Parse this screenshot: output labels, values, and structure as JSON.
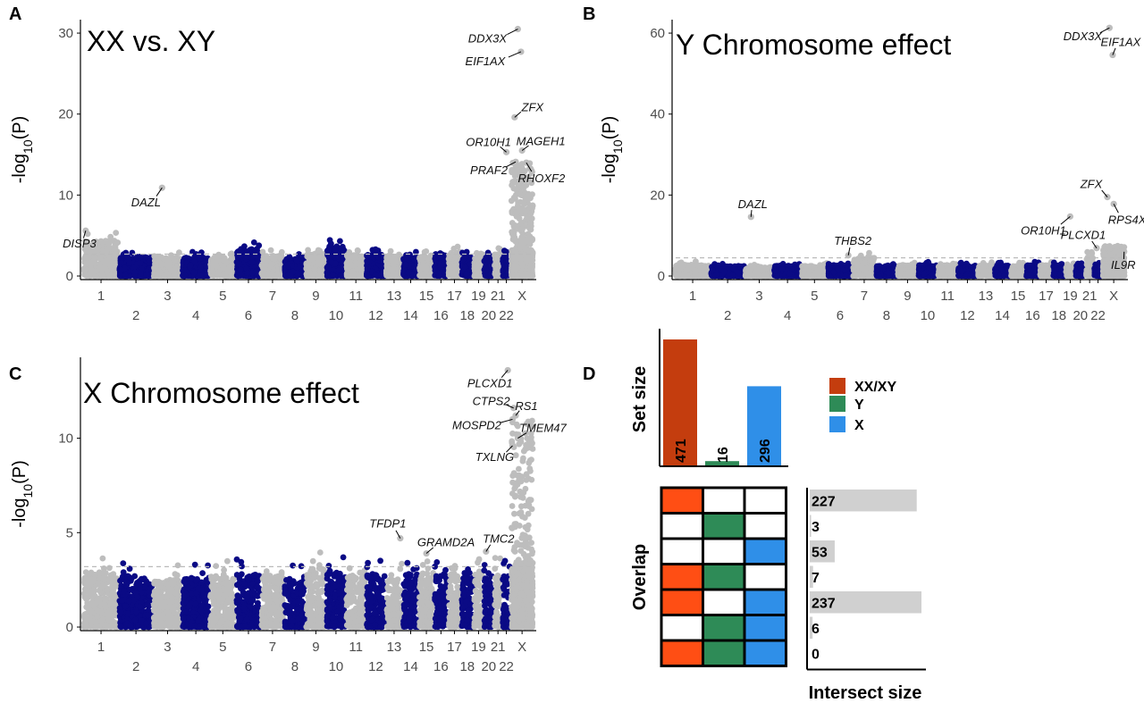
{
  "colors": {
    "gray": "#bdbdbd",
    "navy": "#0a0a85",
    "xxxy": "#c43d0e",
    "y": "#2e8b57",
    "x": "#2f8fe8",
    "cellRed": "#ff4e14",
    "cellGreen": "#2e8b57",
    "cellBlue": "#2f8fe8",
    "threshold": "#bbbbbb"
  },
  "chart_data": [
    {
      "panel": "A",
      "type": "scatter",
      "title": "XX vs. XY",
      "ylabel": "-log10(P)",
      "ylim": [
        0,
        31
      ],
      "yticks": [
        0,
        10,
        20,
        30
      ],
      "chromosomes": [
        "1",
        "2",
        "3",
        "4",
        "5",
        "6",
        "7",
        "8",
        "9",
        "10",
        "11",
        "12",
        "13",
        "14",
        "15",
        "16",
        "17",
        "18",
        "19",
        "20",
        "21",
        "22",
        "X"
      ],
      "threshold": 2.7,
      "chrom_max": [
        5.6,
        3.2,
        3.0,
        3.0,
        3.0,
        4.3,
        3.2,
        2.8,
        3.6,
        4.7,
        3.3,
        3.5,
        3.1,
        3.0,
        3.1,
        3.3,
        3.7,
        3.1,
        3.0,
        3.0,
        3.6,
        3.2,
        14
      ],
      "hits": [
        {
          "gene": "DDX3X",
          "chr": "X",
          "pos": 0.3,
          "y": 30.5,
          "dx": -34,
          "dy": 11
        },
        {
          "gene": "EIF1AX",
          "chr": "X",
          "pos": 0.45,
          "y": 27.7,
          "dx": -40,
          "dy": 11
        },
        {
          "gene": "ZFX",
          "chr": "X",
          "pos": 0.15,
          "y": 19.6,
          "dx": 20,
          "dy": -11
        },
        {
          "gene": "OR10H1",
          "chr": "22",
          "pos": 0.5,
          "y": 15.3,
          "dx": -20,
          "dy": -11
        },
        {
          "gene": "MAGEH1",
          "chr": "X",
          "pos": 0.5,
          "y": 15.5,
          "dx": 21,
          "dy": -10
        },
        {
          "gene": "PRAF2",
          "chr": "X",
          "pos": 0.2,
          "y": 14.1,
          "dx": -30,
          "dy": 10
        },
        {
          "gene": "RHOXF2",
          "chr": "X",
          "pos": 0.7,
          "y": 14.0,
          "dx": 17,
          "dy": 18
        },
        {
          "gene": "DAZL",
          "chr": "3",
          "pos": 0.3,
          "y": 10.9,
          "dx": -18,
          "dy": 17
        },
        {
          "gene": "DISP3",
          "chr": "1",
          "pos": 0.05,
          "y": 5.6,
          "dx": -7,
          "dy": 15
        }
      ]
    },
    {
      "panel": "B",
      "type": "scatter",
      "title": "Y Chromosome effect",
      "ylabel": "-log10(P)",
      "ylim": [
        0,
        62
      ],
      "yticks": [
        0,
        20,
        40,
        60
      ],
      "chromosomes": [
        "1",
        "2",
        "3",
        "4",
        "5",
        "6",
        "7",
        "8",
        "9",
        "10",
        "11",
        "12",
        "13",
        "14",
        "15",
        "16",
        "17",
        "18",
        "19",
        "20",
        "21",
        "22",
        "X"
      ],
      "threshold": 4.5,
      "chrom_max": [
        3.6,
        3.2,
        3.0,
        3.3,
        3.2,
        3.5,
        5.8,
        3.2,
        3.4,
        3.5,
        3.6,
        3.3,
        3.4,
        3.5,
        3.3,
        3.6,
        3.6,
        3.4,
        3.2,
        3.4,
        6.0,
        3.3,
        7.5
      ],
      "hits": [
        {
          "gene": "DDX3X",
          "chr": "X",
          "pos": 0.3,
          "y": 61.3,
          "dx": -30,
          "dy": 10
        },
        {
          "gene": "EIF1AX",
          "chr": "X",
          "pos": 0.45,
          "y": 54.6,
          "dx": 9,
          "dy": -14
        },
        {
          "gene": "ZFX",
          "chr": "X",
          "pos": 0.2,
          "y": 19.5,
          "dx": -18,
          "dy": -14
        },
        {
          "gene": "RPS4X",
          "chr": "X",
          "pos": 0.5,
          "y": 17.8,
          "dx": 15,
          "dy": 18
        },
        {
          "gene": "OR10H1",
          "chr": "19",
          "pos": 0.5,
          "y": 14.7,
          "dx": -30,
          "dy": 16
        },
        {
          "gene": "DAZL",
          "chr": "3",
          "pos": 0.2,
          "y": 14.6,
          "dx": 2,
          "dy": -14
        },
        {
          "gene": "PLCXD1",
          "chr": "22",
          "pos": 0.3,
          "y": 6.9,
          "dx": -15,
          "dy": -14
        },
        {
          "gene": "THBS2",
          "chr": "6",
          "pos": 0.85,
          "y": 5.1,
          "dx": 5,
          "dy": -16
        },
        {
          "gene": "IL9R",
          "chr": "X",
          "pos": 0.99,
          "y": 6.0,
          "dx": -1,
          "dy": 15
        }
      ]
    },
    {
      "panel": "C",
      "type": "scatter",
      "title": "X Chromosome effect",
      "ylabel": "-log10(P)",
      "ylim": [
        0,
        14
      ],
      "yticks": [
        0,
        5,
        10
      ],
      "chromosomes": [
        "1",
        "2",
        "3",
        "4",
        "5",
        "6",
        "7",
        "8",
        "9",
        "10",
        "11",
        "12",
        "13",
        "14",
        "15",
        "16",
        "17",
        "18",
        "19",
        "20",
        "21",
        "22",
        "X"
      ],
      "threshold": 3.2,
      "chrom_max": [
        3.8,
        3.5,
        3.3,
        3.4,
        3.6,
        3.6,
        3.5,
        3.3,
        4.0,
        3.7,
        3.5,
        3.6,
        3.4,
        3.6,
        3.7,
        3.6,
        3.7,
        3.5,
        4.1,
        3.5,
        3.7,
        3.6,
        11
      ],
      "hits": [
        {
          "gene": "PLCXD1",
          "chr": "22",
          "pos": 0.7,
          "y": 13.6,
          "dx": -20,
          "dy": 15
        },
        {
          "gene": "CTPS2",
          "chr": "X",
          "pos": 0.1,
          "y": 11.6,
          "dx": -25,
          "dy": -7
        },
        {
          "gene": "RS1",
          "chr": "X",
          "pos": 0.2,
          "y": 11.2,
          "dx": 12,
          "dy": -10
        },
        {
          "gene": "MOSPD2",
          "chr": "X",
          "pos": 0.05,
          "y": 11.0,
          "dx": -40,
          "dy": 7
        },
        {
          "gene": "TMEM47",
          "chr": "X",
          "pos": 0.3,
          "y": 10.0,
          "dx": 28,
          "dy": -11
        },
        {
          "gene": "TXLNG",
          "chr": "X",
          "pos": 0.05,
          "y": 9.6,
          "dx": -20,
          "dy": 13
        },
        {
          "gene": "TFDP1",
          "chr": "13",
          "pos": 0.9,
          "y": 4.7,
          "dx": -14,
          "dy": -16
        },
        {
          "gene": "GRAMD2A",
          "chr": "15",
          "pos": 0.5,
          "y": 3.9,
          "dx": 22,
          "dy": -12
        },
        {
          "gene": "TMC2",
          "chr": "20",
          "pos": 0.2,
          "y": 4.0,
          "dx": 14,
          "dy": -14
        }
      ]
    },
    {
      "panel": "D",
      "type": "bar",
      "set_size_label": "Set size",
      "overlap_label": "Overlap",
      "xlabel": "Intersect size",
      "sets": [
        {
          "name": "XX/XY",
          "size": 471
        },
        {
          "name": "Y",
          "size": 16
        },
        {
          "name": "X",
          "size": 296
        }
      ],
      "legend": [
        "XX/XY",
        "Y",
        "X"
      ],
      "intersections": [
        {
          "size": 227,
          "members": [
            true,
            false,
            false
          ]
        },
        {
          "size": 3,
          "members": [
            false,
            true,
            false
          ]
        },
        {
          "size": 53,
          "members": [
            false,
            false,
            true
          ]
        },
        {
          "size": 7,
          "members": [
            true,
            true,
            false
          ]
        },
        {
          "size": 237,
          "members": [
            true,
            false,
            true
          ]
        },
        {
          "size": 6,
          "members": [
            false,
            true,
            true
          ]
        },
        {
          "size": 0,
          "members": [
            true,
            true,
            true
          ]
        }
      ]
    }
  ]
}
